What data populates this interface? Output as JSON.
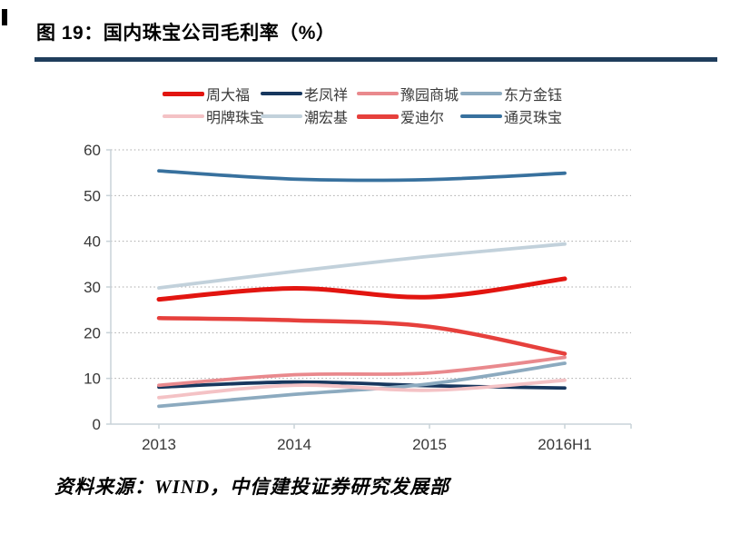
{
  "source_note": "资料来源：WIND，中信建投证券研究发展部",
  "theme": {
    "title_rule_color": "#1f3d5c",
    "axis_color": "#c8d2d8",
    "gridline_color": "#a8a8a8",
    "tick_label_color": "#383838"
  },
  "chart_data": {
    "type": "line",
    "title": "图 19：国内珠宝公司毛利率（%）",
    "categories": [
      "2013",
      "2014",
      "2015",
      "2016H1"
    ],
    "ylim": [
      0,
      60
    ],
    "yticks": [
      0,
      10,
      20,
      30,
      40,
      50,
      60
    ],
    "grid": "horizontal-dotted",
    "legend_position": "top",
    "line_style": "smooth",
    "series": [
      {
        "name": "周大福",
        "color": "#e21510",
        "width": 5,
        "values": [
          27.3,
          29.7,
          27.8,
          31.8
        ]
      },
      {
        "name": "老凤祥",
        "color": "#17375e",
        "width": 3.8,
        "values": [
          8.1,
          9.2,
          8.4,
          7.9
        ]
      },
      {
        "name": "豫园商城",
        "color": "#e9898d",
        "width": 3.8,
        "values": [
          8.5,
          10.8,
          11.2,
          14.6
        ]
      },
      {
        "name": "东方金钰",
        "color": "#8caabf",
        "width": 3.8,
        "values": [
          3.9,
          6.5,
          8.8,
          13.3
        ]
      },
      {
        "name": "明牌珠宝",
        "color": "#f4c2c5",
        "width": 3.8,
        "values": [
          5.8,
          8.5,
          7.4,
          9.6
        ]
      },
      {
        "name": "潮宏基",
        "color": "#c2d1db",
        "width": 3.8,
        "values": [
          29.8,
          33.4,
          36.7,
          39.4
        ]
      },
      {
        "name": "爱迪尔",
        "color": "#e6403c",
        "width": 4.5,
        "values": [
          23.2,
          22.7,
          21.3,
          15.4
        ]
      },
      {
        "name": "通灵珠宝",
        "color": "#38719e",
        "width": 3.8,
        "values": [
          55.4,
          53.6,
          53.5,
          54.9
        ]
      }
    ]
  }
}
